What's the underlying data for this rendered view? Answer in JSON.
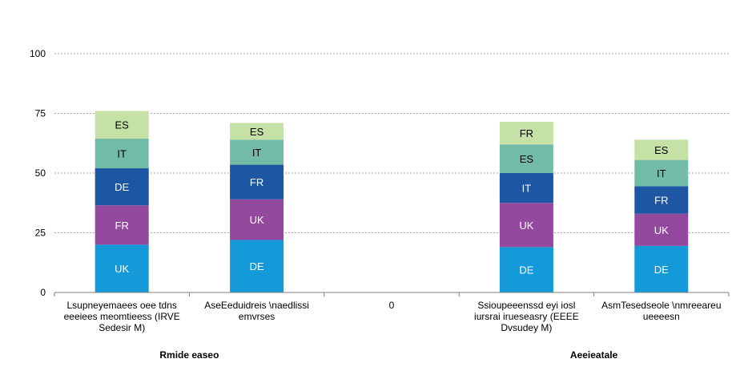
{
  "chart_data": {
    "type": "bar",
    "stacked": true,
    "ylim": [
      0,
      100
    ],
    "yticks": [
      0,
      25,
      50,
      75,
      100
    ],
    "grid": true,
    "categories": [
      {
        "lines": [
          "Lsupneyemaees oee tdns",
          "eeeiees meomtieess (IRVE",
          "Sedesir M)"
        ],
        "segments": [
          {
            "label": "UK",
            "value": 20,
            "color": "#1499d9"
          },
          {
            "label": "FR",
            "value": 16.5,
            "color": "#934a9e"
          },
          {
            "label": "DE",
            "value": 15.5,
            "color": "#1d56a2"
          },
          {
            "label": "IT",
            "value": 12.5,
            "color": "#72bba6"
          },
          {
            "label": "ES",
            "value": 11.5,
            "color": "#c5e1a5"
          }
        ]
      },
      {
        "lines": [
          "AseEeduidreis \\naedlissi",
          "emvrses"
        ],
        "segments": [
          {
            "label": "DE",
            "value": 22,
            "color": "#1499d9"
          },
          {
            "label": "UK",
            "value": 17,
            "color": "#934a9e"
          },
          {
            "label": "FR",
            "value": 14.5,
            "color": "#1d56a2"
          },
          {
            "label": "IT",
            "value": 10.5,
            "color": "#72bba6"
          },
          {
            "label": "ES",
            "value": 7,
            "color": "#c5e1a5"
          }
        ]
      },
      {
        "lines": [
          "0"
        ],
        "segments": []
      },
      {
        "lines": [
          "Ssioupeeenssd eyi iosl",
          "iursrai irueseasry (EEEE",
          "Dvsudey M)"
        ],
        "segments": [
          {
            "label": "DE",
            "value": 19,
            "color": "#1499d9"
          },
          {
            "label": "UK",
            "value": 18.5,
            "color": "#934a9e"
          },
          {
            "label": "IT",
            "value": 12.5,
            "color": "#1d56a2"
          },
          {
            "label": "ES",
            "value": 12,
            "color": "#72bba6"
          },
          {
            "label": "FR",
            "value": 9.5,
            "color": "#c5e1a5"
          }
        ]
      },
      {
        "lines": [
          "AsmTesedseole \\nmreeareu",
          "ueeeesn"
        ],
        "segments": [
          {
            "label": "DE",
            "value": 19.5,
            "color": "#1499d9"
          },
          {
            "label": "UK",
            "value": 13.5,
            "color": "#934a9e"
          },
          {
            "label": "FR",
            "value": 11.5,
            "color": "#1d56a2"
          },
          {
            "label": "IT",
            "value": 11,
            "color": "#72bba6"
          },
          {
            "label": "ES",
            "value": 8.5,
            "color": "#c5e1a5"
          }
        ]
      }
    ],
    "groups": [
      {
        "label": "Rmide easeo",
        "categories": [
          0,
          1
        ]
      },
      {
        "label": "Aeeieatale",
        "categories": [
          3,
          4
        ]
      }
    ]
  }
}
